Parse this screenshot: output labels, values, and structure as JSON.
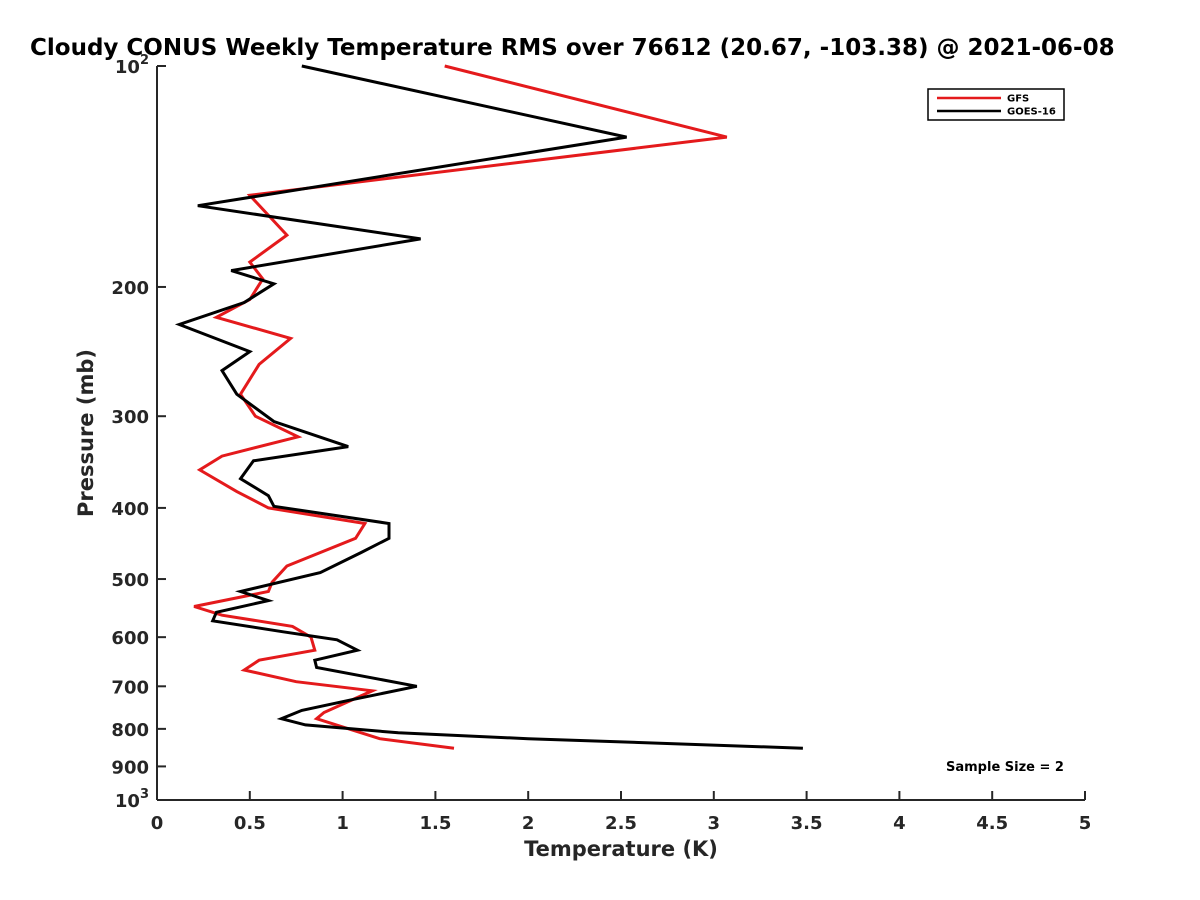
{
  "chart_data": {
    "type": "line",
    "title": "Cloudy CONUS Weekly Temperature RMS over 76612 (20.67, -103.38) @ 2021-06-08",
    "xlabel": "Temperature (K)",
    "ylabel": "Pressure (mb)",
    "xlim": [
      0,
      5
    ],
    "ylim": [
      100,
      1000
    ],
    "yscale": "log",
    "y_reversed": true,
    "grid": false,
    "legend_position": "top-right",
    "x_ticks": [
      0,
      0.5,
      1,
      1.5,
      2,
      2.5,
      3,
      3.5,
      4,
      4.5,
      5
    ],
    "x_tick_labels": [
      "0",
      "0.5",
      "1",
      "1.5",
      "2",
      "2.5",
      "3",
      "3.5",
      "4",
      "4.5",
      "5"
    ],
    "y_ticks": [
      100,
      200,
      300,
      400,
      500,
      600,
      700,
      800,
      900,
      1000
    ],
    "y_tick_labels": [
      {
        "base": "10",
        "exp": "2"
      },
      {
        "base": "200",
        "exp": ""
      },
      {
        "base": "300",
        "exp": ""
      },
      {
        "base": "400",
        "exp": ""
      },
      {
        "base": "500",
        "exp": ""
      },
      {
        "base": "600",
        "exp": ""
      },
      {
        "base": "700",
        "exp": ""
      },
      {
        "base": "800",
        "exp": ""
      },
      {
        "base": "900",
        "exp": ""
      },
      {
        "base": "10",
        "exp": "3"
      }
    ],
    "annotation": "Sample Size = 2",
    "series": [
      {
        "name": "GFS",
        "color": "#e41a1c",
        "points": [
          [
            1.55,
            100
          ],
          [
            3.07,
            125
          ],
          [
            0.5,
            150
          ],
          [
            0.7,
            170
          ],
          [
            0.5,
            185
          ],
          [
            0.57,
            195
          ],
          [
            0.5,
            208
          ],
          [
            0.32,
            220
          ],
          [
            0.72,
            235
          ],
          [
            0.55,
            255
          ],
          [
            0.45,
            280
          ],
          [
            0.53,
            300
          ],
          [
            0.76,
            320
          ],
          [
            0.35,
            340
          ],
          [
            0.23,
            355
          ],
          [
            0.43,
            380
          ],
          [
            0.6,
            400
          ],
          [
            1.12,
            420
          ],
          [
            1.07,
            440
          ],
          [
            0.7,
            480
          ],
          [
            0.62,
            505
          ],
          [
            0.6,
            520
          ],
          [
            0.2,
            545
          ],
          [
            0.35,
            560
          ],
          [
            0.73,
            580
          ],
          [
            0.83,
            600
          ],
          [
            0.85,
            625
          ],
          [
            0.55,
            645
          ],
          [
            0.47,
            665
          ],
          [
            0.75,
            690
          ],
          [
            1.16,
            710
          ],
          [
            0.9,
            760
          ],
          [
            0.86,
            775
          ],
          [
            1.0,
            795
          ],
          [
            1.2,
            825
          ],
          [
            1.6,
            850
          ]
        ]
      },
      {
        "name": "GOES-16",
        "color": "#000000",
        "points": [
          [
            0.78,
            100
          ],
          [
            2.53,
            125
          ],
          [
            0.22,
            155
          ],
          [
            1.42,
            172
          ],
          [
            0.4,
            190
          ],
          [
            0.63,
            198
          ],
          [
            0.47,
            210
          ],
          [
            0.12,
            225
          ],
          [
            0.5,
            245
          ],
          [
            0.35,
            260
          ],
          [
            0.43,
            280
          ],
          [
            0.63,
            305
          ],
          [
            1.03,
            330
          ],
          [
            0.52,
            345
          ],
          [
            0.45,
            365
          ],
          [
            0.6,
            385
          ],
          [
            0.63,
            398
          ],
          [
            1.25,
            420
          ],
          [
            1.25,
            440
          ],
          [
            1.1,
            460
          ],
          [
            0.88,
            490
          ],
          [
            0.45,
            520
          ],
          [
            0.6,
            535
          ],
          [
            0.32,
            555
          ],
          [
            0.3,
            570
          ],
          [
            0.68,
            590
          ],
          [
            0.97,
            605
          ],
          [
            1.08,
            625
          ],
          [
            0.85,
            645
          ],
          [
            0.86,
            660
          ],
          [
            1.4,
            700
          ],
          [
            1.05,
            730
          ],
          [
            0.78,
            755
          ],
          [
            0.67,
            775
          ],
          [
            0.8,
            790
          ],
          [
            1.3,
            810
          ],
          [
            2.0,
            825
          ],
          [
            3.48,
            850
          ]
        ]
      }
    ]
  }
}
